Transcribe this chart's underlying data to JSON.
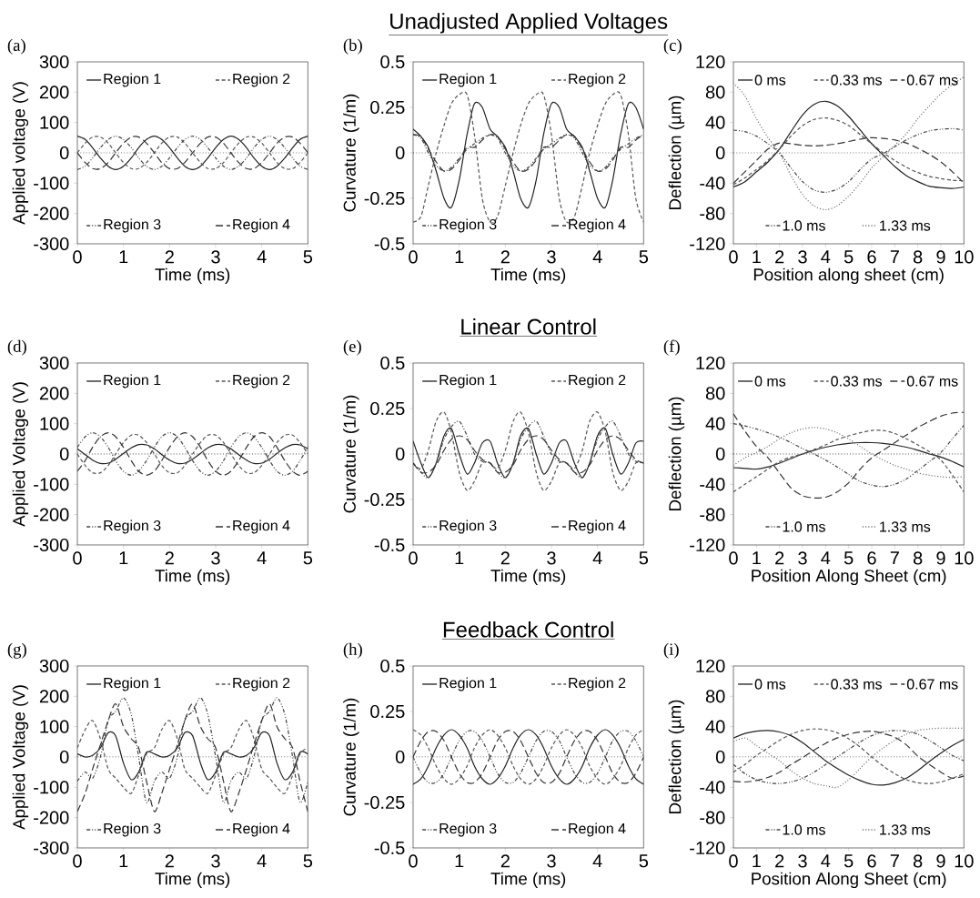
{
  "chart_data": [
    {
      "type": "line",
      "annotations": [
        "(a)"
      ],
      "xlabel": "Time (ms)",
      "ylabel": "Applied voltage (V)",
      "xlim": [
        0,
        5
      ],
      "xticks": [
        0,
        1,
        2,
        3,
        4,
        5
      ],
      "ylim": [
        -300,
        300
      ],
      "yticks": [
        -300,
        -200,
        -100,
        0,
        100,
        200,
        300
      ],
      "legend": "center",
      "ref_lines": [
        {
          "axis": "y",
          "value": 0,
          "line_style": "dotted"
        }
      ],
      "x": [
        0,
        0.17,
        0.33,
        0.5,
        0.67,
        0.83,
        1,
        1.17,
        1.33,
        1.5,
        1.67,
        1.83,
        2,
        2.17,
        2.33,
        2.5,
        2.67,
        2.83,
        3,
        3.17,
        3.33,
        3.5,
        3.67,
        3.83,
        4,
        4.17,
        4.33,
        4.5,
        4.67,
        4.83,
        5
      ],
      "series": [
        {
          "name": "Region 1",
          "color": "#222222",
          "line_style": "solid",
          "values": [
            55,
            44,
            17,
            -17,
            -44,
            -55,
            -44,
            -17,
            17,
            44,
            55,
            44,
            17,
            -17,
            -44,
            -55,
            -44,
            -17,
            17,
            44,
            55,
            44,
            17,
            -17,
            -44,
            -55,
            -44,
            -17,
            17,
            44,
            55
          ]
        },
        {
          "name": "Region 2",
          "color": "#555555",
          "line_style": "dashed",
          "values": [
            0,
            32,
            52,
            52,
            32,
            0,
            -32,
            -52,
            -52,
            -32,
            0,
            32,
            52,
            52,
            32,
            0,
            -32,
            -52,
            -52,
            -32,
            0,
            32,
            52,
            52,
            32,
            0,
            -32,
            -52,
            -52,
            -32,
            0
          ]
        },
        {
          "name": "Region 3",
          "color": "#444444",
          "line_style": "dashdot",
          "values": [
            -55,
            -44,
            -17,
            17,
            44,
            55,
            44,
            17,
            -17,
            -44,
            -55,
            -44,
            -17,
            17,
            44,
            55,
            44,
            17,
            -17,
            -44,
            -55,
            -44,
            -17,
            17,
            44,
            55,
            44,
            17,
            -17,
            -44,
            -55
          ]
        },
        {
          "name": "Region 4",
          "color": "#333333",
          "line_style": "longdash",
          "values": [
            0,
            -32,
            -52,
            -52,
            -32,
            0,
            32,
            52,
            52,
            32,
            0,
            -32,
            -52,
            -52,
            -32,
            0,
            32,
            52,
            52,
            32,
            0,
            -32,
            -52,
            -52,
            -32,
            0,
            32,
            52,
            52,
            32,
            0
          ]
        }
      ]
    },
    {
      "type": "line",
      "title": "Unadjusted Applied Voltages",
      "annotations": [
        "(b)"
      ],
      "xlabel": "Time (ms)",
      "ylabel": "Curvature (1/m)",
      "xlim": [
        0,
        5
      ],
      "xticks": [
        0,
        1,
        2,
        3,
        4,
        5
      ],
      "ylim": [
        -0.5,
        0.5
      ],
      "yticks": [
        -0.5,
        -0.25,
        0,
        0.25,
        0.5
      ],
      "legend": "center",
      "ref_lines": [
        {
          "axis": "y",
          "value": 0,
          "line_style": "dotted"
        }
      ],
      "x": [
        0,
        0.17,
        0.33,
        0.5,
        0.67,
        0.83,
        1,
        1.17,
        1.33,
        1.5,
        1.67,
        1.83,
        2,
        2.17,
        2.33,
        2.5,
        2.67,
        2.83,
        3,
        3.17,
        3.33,
        3.5,
        3.67,
        3.83,
        4,
        4.17,
        4.33,
        4.5,
        4.67,
        4.83,
        5
      ],
      "series": [
        {
          "name": "Region 1",
          "color": "#222222",
          "line_style": "solid",
          "values": [
            0.13,
            0.09,
            0.03,
            -0.1,
            -0.25,
            -0.3,
            -0.15,
            0.1,
            0.27,
            0.25,
            0.13,
            0.09,
            0.03,
            -0.1,
            -0.25,
            -0.3,
            -0.15,
            0.1,
            0.27,
            0.25,
            0.13,
            0.09,
            0.03,
            -0.1,
            -0.25,
            -0.3,
            -0.15,
            0.1,
            0.27,
            0.25,
            0.13
          ]
        },
        {
          "name": "Region 2",
          "color": "#555555",
          "line_style": "dashed",
          "values": [
            -0.38,
            -0.35,
            -0.18,
            0,
            0.15,
            0.27,
            0.32,
            0.32,
            0.1,
            -0.25,
            -0.38,
            -0.35,
            -0.18,
            0,
            0.15,
            0.27,
            0.32,
            0.32,
            0.1,
            -0.25,
            -0.38,
            -0.35,
            -0.18,
            0,
            0.15,
            0.27,
            0.32,
            0.32,
            0.1,
            -0.25,
            -0.38
          ]
        },
        {
          "name": "Region 3",
          "color": "#444444",
          "line_style": "dashdot",
          "values": [
            0.1,
            0.08,
            0,
            -0.07,
            -0.1,
            -0.08,
            -0.03,
            0.02,
            0.05,
            0.08,
            0.1,
            0.08,
            0,
            -0.07,
            -0.1,
            -0.08,
            -0.03,
            0.02,
            0.05,
            0.08,
            0.1,
            0.08,
            0,
            -0.07,
            -0.1,
            -0.08,
            -0.03,
            0.02,
            0.05,
            0.08,
            0.1
          ]
        },
        {
          "name": "Region 4",
          "color": "#333333",
          "line_style": "longdash",
          "values": [
            0.1,
            0.09,
            0.02,
            -0.05,
            -0.1,
            -0.09,
            -0.04,
            0.03,
            0.03,
            0.07,
            0.1,
            0.09,
            0.02,
            -0.05,
            -0.1,
            -0.09,
            -0.04,
            0.03,
            0.03,
            0.07,
            0.1,
            0.09,
            0.02,
            -0.05,
            -0.1,
            -0.09,
            -0.04,
            0.03,
            0.03,
            0.07,
            0.1
          ]
        }
      ]
    },
    {
      "type": "line",
      "annotations": [
        "(c)"
      ],
      "xlabel": "Position along sheet (cm)",
      "ylabel": "Deflection (µm)",
      "xlim": [
        0,
        10
      ],
      "xticks": [
        0,
        1,
        2,
        3,
        4,
        5,
        6,
        7,
        8,
        9,
        10
      ],
      "ylim": [
        -120,
        120
      ],
      "yticks": [
        -120,
        -80,
        -40,
        0,
        40,
        80,
        120
      ],
      "legend": "center",
      "ref_lines": [
        {
          "axis": "y",
          "value": 0,
          "line_style": "dotted"
        }
      ],
      "x": [
        0,
        0.5,
        1,
        1.5,
        2,
        2.5,
        3,
        3.5,
        4,
        4.5,
        5,
        5.5,
        6,
        6.5,
        7,
        7.5,
        8,
        8.5,
        9,
        9.5,
        10
      ],
      "series": [
        {
          "name": "0 ms",
          "color": "#222222",
          "line_style": "solid",
          "values": [
            -45,
            -38,
            -25,
            -12,
            5,
            28,
            50,
            64,
            68,
            62,
            48,
            30,
            12,
            -3,
            -18,
            -30,
            -38,
            -44,
            -46,
            -47,
            -45
          ]
        },
        {
          "name": "0.33 ms",
          "color": "#555555",
          "line_style": "dashed",
          "values": [
            -42,
            -33,
            -22,
            -10,
            5,
            22,
            36,
            44,
            46,
            43,
            36,
            24,
            12,
            0,
            -10,
            -19,
            -26,
            -31,
            -34,
            -36,
            -37
          ]
        },
        {
          "name": "0.67 ms",
          "color": "#333333",
          "line_style": "longdash",
          "values": [
            -40,
            -25,
            -10,
            5,
            13,
            12,
            10,
            9,
            10,
            12,
            15,
            18,
            20,
            19,
            17,
            13,
            6,
            -2,
            -12,
            -25,
            -40
          ]
        },
        {
          "name": "1.0 ms",
          "color": "#444444",
          "line_style": "dashdot",
          "values": [
            30,
            28,
            22,
            12,
            0,
            -20,
            -38,
            -49,
            -52,
            -48,
            -38,
            -22,
            -8,
            -1,
            8,
            17,
            24,
            29,
            31,
            32,
            30
          ]
        },
        {
          "name": "1.33 ms",
          "color": "#666666",
          "line_style": "dotted",
          "values": [
            92,
            75,
            45,
            20,
            0,
            -30,
            -55,
            -70,
            -75,
            -70,
            -57,
            -40,
            -20,
            -5,
            10,
            25,
            45,
            62,
            78,
            90,
            100
          ]
        }
      ]
    },
    {
      "type": "line",
      "annotations": [
        "(d)"
      ],
      "xlabel": "Time (ms)",
      "ylabel": "Applied Voltage (V)",
      "xlim": [
        0,
        5
      ],
      "xticks": [
        0,
        1,
        2,
        3,
        4,
        5
      ],
      "ylim": [
        -300,
        300
      ],
      "yticks": [
        -300,
        -200,
        -100,
        0,
        100,
        200,
        300
      ],
      "legend": "center",
      "ref_lines": [
        {
          "axis": "y",
          "value": 0,
          "line_style": "dotted"
        }
      ],
      "x": [
        0,
        0.17,
        0.33,
        0.5,
        0.67,
        0.83,
        1,
        1.17,
        1.33,
        1.5,
        1.67,
        1.83,
        2,
        2.17,
        2.33,
        2.5,
        2.67,
        2.83,
        3,
        3.17,
        3.33,
        3.5,
        3.67,
        3.83,
        4,
        4.17,
        4.33,
        4.5,
        4.67,
        4.83,
        5
      ],
      "series": [
        {
          "name": "Region 1",
          "color": "#222222",
          "line_style": "solid",
          "values": [
            17,
            -2,
            -20,
            -31,
            -30,
            -17,
            2,
            20,
            31,
            30,
            17,
            -2,
            -20,
            -31,
            -30,
            -17,
            2,
            20,
            31,
            30,
            17,
            -2,
            -20,
            -31,
            -30,
            -17,
            2,
            20,
            31,
            30,
            17
          ]
        },
        {
          "name": "Region 2",
          "color": "#555555",
          "line_style": "dashed",
          "values": [
            0,
            -38,
            -62,
            -62,
            -38,
            0,
            38,
            62,
            62,
            38,
            0,
            -38,
            -62,
            -62,
            -38,
            0,
            38,
            62,
            62,
            38,
            0,
            -38,
            -62,
            -62,
            -38,
            0,
            38,
            62,
            62,
            38,
            0
          ]
        },
        {
          "name": "Region 3",
          "color": "#444444",
          "line_style": "dashdot",
          "values": [
            22,
            57,
            70,
            57,
            22,
            -22,
            -57,
            -70,
            -57,
            -22,
            22,
            57,
            70,
            57,
            22,
            -22,
            -57,
            -70,
            -57,
            -22,
            22,
            57,
            70,
            57,
            22,
            -22,
            -57,
            -70,
            -57,
            -22,
            22
          ]
        },
        {
          "name": "Region 4",
          "color": "#333333",
          "line_style": "longdash",
          "values": [
            -57,
            -22,
            22,
            57,
            70,
            57,
            22,
            -22,
            -57,
            -70,
            -57,
            -22,
            22,
            57,
            70,
            57,
            22,
            -22,
            -57,
            -70,
            -57,
            -22,
            22,
            57,
            70,
            57,
            22,
            -22,
            -57,
            -70,
            -57
          ]
        }
      ]
    },
    {
      "type": "line",
      "title": "Linear Control",
      "annotations": [
        "(e)"
      ],
      "xlabel": "Time (ms)",
      "ylabel": "Curvature (1/m)",
      "xlim": [
        0,
        5
      ],
      "xticks": [
        0,
        1,
        2,
        3,
        4,
        5
      ],
      "ylim": [
        -0.5,
        0.5
      ],
      "yticks": [
        -0.5,
        -0.25,
        0,
        0.25,
        0.5
      ],
      "legend": "center",
      "ref_lines": [
        {
          "axis": "y",
          "value": 0,
          "line_style": "dotted"
        }
      ],
      "x": [
        0,
        0.17,
        0.33,
        0.5,
        0.67,
        0.83,
        1,
        1.17,
        1.33,
        1.5,
        1.67,
        1.83,
        2,
        2.17,
        2.33,
        2.5,
        2.67,
        2.83,
        3,
        3.17,
        3.33,
        3.5,
        3.67,
        3.83,
        4,
        4.17,
        4.33,
        4.5,
        4.67,
        4.83,
        5
      ],
      "series": [
        {
          "name": "Region 1",
          "color": "#222222",
          "line_style": "solid",
          "values": [
            0.07,
            -0.05,
            -0.13,
            -0.05,
            0.1,
            0.14,
            0,
            -0.11,
            -0.05,
            0.06,
            0.07,
            -0.05,
            -0.13,
            -0.05,
            0.1,
            0.14,
            0,
            -0.11,
            -0.05,
            0.06,
            0.07,
            -0.05,
            -0.13,
            -0.05,
            0.1,
            0.14,
            0,
            -0.11,
            -0.05,
            0.06,
            0.07
          ]
        },
        {
          "name": "Region 2",
          "color": "#555555",
          "line_style": "dashed",
          "values": [
            -0.05,
            -0.08,
            0.02,
            0.18,
            0.23,
            0.12,
            -0.1,
            -0.2,
            -0.15,
            -0.05,
            -0.05,
            -0.08,
            0.02,
            0.18,
            0.23,
            0.12,
            -0.1,
            -0.2,
            -0.15,
            -0.05,
            -0.05,
            -0.08,
            0.02,
            0.18,
            0.23,
            0.12,
            -0.1,
            -0.2,
            -0.15,
            -0.05,
            -0.05
          ]
        },
        {
          "name": "Region 3",
          "color": "#444444",
          "line_style": "dashdot",
          "values": [
            -0.05,
            -0.1,
            -0.13,
            -0.05,
            0.08,
            0.15,
            0.18,
            0.1,
            0,
            -0.04,
            -0.05,
            -0.1,
            -0.13,
            -0.05,
            0.08,
            0.15,
            0.18,
            0.1,
            0,
            -0.04,
            -0.05,
            -0.1,
            -0.13,
            -0.05,
            0.08,
            0.15,
            0.18,
            0.1,
            0,
            -0.04,
            -0.05
          ]
        },
        {
          "name": "Region 4",
          "color": "#333333",
          "line_style": "longdash",
          "values": [
            -0.05,
            -0.1,
            -0.1,
            -0.06,
            0.02,
            0.08,
            0.1,
            0.08,
            0.02,
            -0.03,
            -0.05,
            -0.1,
            -0.1,
            -0.06,
            0.02,
            0.08,
            0.1,
            0.08,
            0.02,
            -0.03,
            -0.05,
            -0.1,
            -0.1,
            -0.06,
            0.02,
            0.08,
            0.1,
            0.08,
            0.02,
            -0.03,
            -0.05
          ]
        }
      ]
    },
    {
      "type": "line",
      "annotations": [
        "(f)"
      ],
      "xlabel": "Position Along Sheet (cm)",
      "ylabel": "Deflection (µm)",
      "xlim": [
        0,
        10
      ],
      "xticks": [
        0,
        1,
        2,
        3,
        4,
        5,
        6,
        7,
        8,
        9,
        10
      ],
      "ylim": [
        -120,
        120
      ],
      "yticks": [
        -120,
        -80,
        -40,
        0,
        40,
        80,
        120
      ],
      "legend": "center",
      "ref_lines": [
        {
          "axis": "y",
          "value": 0,
          "line_style": "dotted"
        }
      ],
      "x": [
        0,
        0.5,
        1,
        1.5,
        2,
        2.5,
        3,
        3.5,
        4,
        4.5,
        5,
        5.5,
        6,
        6.5,
        7,
        7.5,
        8,
        8.5,
        9,
        9.5,
        10
      ],
      "series": [
        {
          "name": "0 ms",
          "color": "#222222",
          "line_style": "solid",
          "values": [
            -18,
            -19,
            -20,
            -17,
            -12,
            -6,
            0,
            5,
            9,
            12,
            14,
            15,
            15,
            14,
            12,
            9,
            5,
            0,
            -4,
            -10,
            -17
          ]
        },
        {
          "name": "0.33 ms",
          "color": "#555555",
          "line_style": "dashed",
          "values": [
            -50,
            -40,
            -30,
            -20,
            -10,
            -4,
            0,
            6,
            12,
            19,
            24,
            28,
            31,
            31,
            27,
            20,
            12,
            3,
            -8,
            -28,
            -50
          ]
        },
        {
          "name": "0.67 ms",
          "color": "#333333",
          "line_style": "longdash",
          "values": [
            53,
            30,
            10,
            -5,
            -25,
            -45,
            -55,
            -58,
            -57,
            -50,
            -38,
            -20,
            -5,
            5,
            15,
            25,
            35,
            43,
            50,
            54,
            55
          ]
        },
        {
          "name": "1.0 ms",
          "color": "#444444",
          "line_style": "dashdot",
          "values": [
            40,
            37,
            33,
            28,
            22,
            15,
            7,
            0,
            -8,
            -17,
            -27,
            -36,
            -41,
            -43,
            -40,
            -33,
            -22,
            -10,
            2,
            20,
            38
          ]
        },
        {
          "name": "1.33 ms",
          "color": "#666666",
          "line_style": "dotted",
          "values": [
            -15,
            -5,
            2,
            10,
            20,
            28,
            33,
            35,
            33,
            28,
            20,
            10,
            0,
            -8,
            -15,
            -20,
            -25,
            -28,
            -30,
            -31,
            -30
          ]
        }
      ]
    },
    {
      "type": "line",
      "annotations": [
        "(g)"
      ],
      "xlabel": "Time (ms)",
      "ylabel": "Applied Voltage (V)",
      "xlim": [
        0,
        5
      ],
      "xticks": [
        0,
        1,
        2,
        3,
        4,
        5
      ],
      "ylim": [
        -300,
        300
      ],
      "yticks": [
        -300,
        -200,
        -100,
        0,
        100,
        200,
        300
      ],
      "legend": "center",
      "ref_lines": [
        {
          "axis": "y",
          "value": 0,
          "line_style": "dotted"
        }
      ],
      "x": [
        0,
        0.17,
        0.33,
        0.5,
        0.67,
        0.83,
        1,
        1.17,
        1.33,
        1.5,
        1.67,
        1.83,
        2,
        2.17,
        2.33,
        2.5,
        2.67,
        2.83,
        3,
        3.17,
        3.33,
        3.5,
        3.67,
        3.83,
        4,
        4.17,
        4.33,
        4.5,
        4.67,
        4.83,
        5
      ],
      "series": [
        {
          "name": "Region 1",
          "color": "#222222",
          "line_style": "solid",
          "values": [
            10,
            0,
            5,
            30,
            80,
            70,
            -20,
            -75,
            -50,
            15,
            10,
            0,
            5,
            30,
            80,
            70,
            -20,
            -75,
            -50,
            15,
            10,
            0,
            5,
            30,
            80,
            70,
            -20,
            -75,
            -50,
            15,
            10
          ]
        },
        {
          "name": "Region 2",
          "color": "#555555",
          "line_style": "dashed",
          "values": [
            30,
            90,
            120,
            60,
            -40,
            -70,
            -100,
            -120,
            -60,
            10,
            30,
            90,
            120,
            60,
            -40,
            -70,
            -100,
            -120,
            -60,
            10,
            30,
            90,
            120,
            60,
            -40,
            -70,
            -100,
            -120,
            -60,
            10,
            30
          ]
        },
        {
          "name": "Region 3",
          "color": "#444444",
          "line_style": "dashdot",
          "values": [
            -80,
            -50,
            -70,
            0,
            120,
            150,
            195,
            140,
            0,
            -150,
            -80,
            -50,
            -70,
            0,
            120,
            150,
            195,
            140,
            0,
            -150,
            -80,
            -50,
            -70,
            0,
            120,
            150,
            195,
            140,
            0,
            -150,
            -80
          ]
        },
        {
          "name": "Region 4",
          "color": "#333333",
          "line_style": "longdash",
          "values": [
            -180,
            -120,
            -40,
            40,
            120,
            175,
            100,
            60,
            30,
            -80,
            -180,
            -120,
            -40,
            40,
            120,
            175,
            100,
            60,
            30,
            -80,
            -180,
            -120,
            -40,
            40,
            120,
            175,
            100,
            60,
            30,
            -80,
            -180
          ]
        }
      ]
    },
    {
      "type": "line",
      "title": "Feedback Control",
      "annotations": [
        "(h)"
      ],
      "xlabel": "Time (ms)",
      "ylabel": "Curvature (1/m)",
      "xlim": [
        0,
        5
      ],
      "xticks": [
        0,
        1,
        2,
        3,
        4,
        5
      ],
      "ylim": [
        -0.5,
        0.5
      ],
      "yticks": [
        -0.5,
        -0.25,
        0,
        0.25,
        0.5
      ],
      "legend": "center",
      "ref_lines": [
        {
          "axis": "y",
          "value": 0,
          "line_style": "dotted"
        }
      ],
      "x": [
        0,
        0.17,
        0.33,
        0.5,
        0.67,
        0.83,
        1,
        1.17,
        1.33,
        1.5,
        1.67,
        1.83,
        2,
        2.17,
        2.33,
        2.5,
        2.67,
        2.83,
        3,
        3.17,
        3.33,
        3.5,
        3.67,
        3.83,
        4,
        4.17,
        4.33,
        4.5,
        4.67,
        4.83,
        5
      ],
      "series": [
        {
          "name": "Region 1",
          "color": "#222222",
          "line_style": "solid",
          "values": [
            -0.15,
            -0.12,
            -0.05,
            0.05,
            0.12,
            0.15,
            0.12,
            0.05,
            -0.05,
            -0.12,
            -0.15,
            -0.12,
            -0.05,
            0.05,
            0.12,
            0.15,
            0.12,
            0.05,
            -0.05,
            -0.12,
            -0.15,
            -0.12,
            -0.05,
            0.05,
            0.12,
            0.15,
            0.12,
            0.05,
            -0.05,
            -0.12,
            -0.15
          ]
        },
        {
          "name": "Region 2",
          "color": "#555555",
          "line_style": "dashed",
          "values": [
            0.15,
            0.12,
            0.05,
            -0.05,
            -0.12,
            -0.15,
            -0.12,
            -0.05,
            0.05,
            0.12,
            0.15,
            0.12,
            0.05,
            -0.05,
            -0.12,
            -0.15,
            -0.12,
            -0.05,
            0.05,
            0.12,
            0.15,
            0.12,
            0.05,
            -0.05,
            -0.12,
            -0.15,
            -0.12,
            -0.05,
            0.05,
            0.12,
            0.15
          ]
        },
        {
          "name": "Region 3",
          "color": "#444444",
          "line_style": "dashdot",
          "values": [
            0,
            -0.09,
            -0.14,
            -0.14,
            -0.09,
            0,
            0.09,
            0.14,
            0.14,
            0.09,
            0,
            -0.09,
            -0.14,
            -0.14,
            -0.09,
            0,
            0.09,
            0.14,
            0.14,
            0.09,
            0,
            -0.09,
            -0.14,
            -0.14,
            -0.09,
            0,
            0.09,
            0.14,
            0.14,
            0.09,
            0
          ]
        },
        {
          "name": "Region 4",
          "color": "#333333",
          "line_style": "longdash",
          "values": [
            0,
            0.09,
            0.14,
            0.14,
            0.09,
            0,
            -0.09,
            -0.14,
            -0.14,
            -0.09,
            0,
            0.09,
            0.14,
            0.14,
            0.09,
            0,
            -0.09,
            -0.14,
            -0.14,
            -0.09,
            0,
            0.09,
            0.14,
            0.14,
            0.09,
            0,
            -0.09,
            -0.14,
            -0.14,
            -0.09,
            0
          ]
        }
      ]
    },
    {
      "type": "line",
      "annotations": [
        "(i)"
      ],
      "xlabel": "Position Along Sheet (cm)",
      "ylabel": "Deflection (µm)",
      "xlim": [
        0,
        10
      ],
      "xticks": [
        0,
        1,
        2,
        3,
        4,
        5,
        6,
        7,
        8,
        9,
        10
      ],
      "ylim": [
        -120,
        120
      ],
      "yticks": [
        -120,
        -80,
        -40,
        0,
        40,
        80,
        120
      ],
      "legend": "center",
      "ref_lines": [
        {
          "axis": "y",
          "value": 0,
          "line_style": "dotted"
        }
      ],
      "x": [
        0,
        0.5,
        1,
        1.5,
        2,
        2.5,
        3,
        3.5,
        4,
        4.5,
        5,
        5.5,
        6,
        6.5,
        7,
        7.5,
        8,
        8.5,
        9,
        9.5,
        10
      ],
      "series": [
        {
          "name": "0 ms",
          "color": "#222222",
          "line_style": "solid",
          "values": [
            25,
            31,
            34,
            35,
            33,
            28,
            19,
            7,
            -5,
            -15,
            -24,
            -31,
            -36,
            -37,
            -34,
            -28,
            -18,
            -6,
            5,
            15,
            23
          ]
        },
        {
          "name": "0.33 ms",
          "color": "#555555",
          "line_style": "dashed",
          "values": [
            -20,
            -10,
            2,
            12,
            22,
            30,
            35,
            37,
            36,
            32,
            24,
            13,
            0,
            -12,
            -22,
            -30,
            -34,
            -35,
            -33,
            -28,
            -22
          ]
        },
        {
          "name": "0.67 ms",
          "color": "#333333",
          "line_style": "longdash",
          "values": [
            -32,
            -33,
            -31,
            -27,
            -20,
            -10,
            -1,
            9,
            18,
            25,
            30,
            33,
            34,
            31,
            26,
            16,
            1,
            -10,
            -20,
            -28,
            -25
          ]
        },
        {
          "name": "1.0 ms",
          "color": "#444444",
          "line_style": "dashdot",
          "values": [
            -10,
            -22,
            -30,
            -34,
            -35,
            -33,
            -28,
            -20,
            -10,
            0,
            10,
            20,
            28,
            33,
            35,
            34,
            30,
            22,
            12,
            2,
            -5
          ]
        },
        {
          "name": "1.33 ms",
          "color": "#666666",
          "line_style": "dotted",
          "values": [
            20,
            25,
            15,
            5,
            -5,
            -18,
            -28,
            -35,
            -38,
            -40,
            -30,
            -15,
            0,
            12,
            22,
            30,
            35,
            37,
            38,
            38,
            38
          ]
        }
      ]
    }
  ]
}
